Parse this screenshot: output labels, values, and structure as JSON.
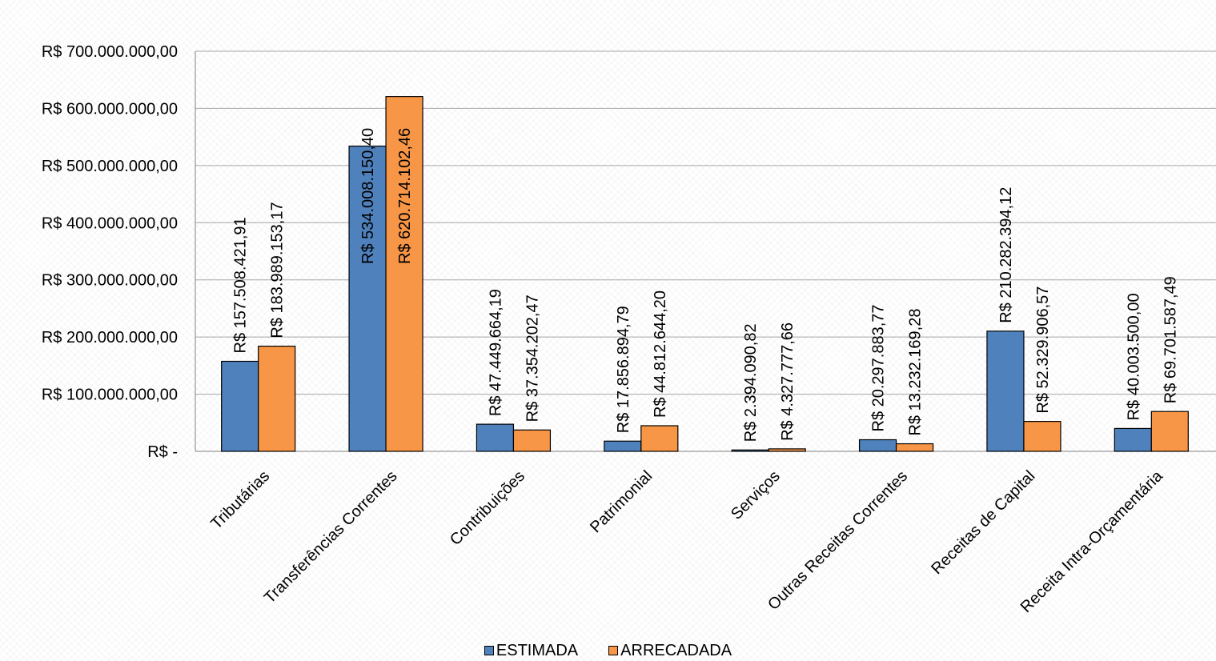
{
  "chart_data": {
    "type": "bar",
    "categories": [
      "Tributárias",
      "Transferências Correntes",
      "Contribuições",
      "Patrimonial",
      "Serviços",
      "Outras Receitas Correntes",
      "Receitas de Capital",
      "Receita Intra-Orçamentária"
    ],
    "series": [
      {
        "name": "ESTIMADA",
        "color": "#4F81BD",
        "values": [
          157508421.91,
          534008150.4,
          47449664.19,
          17856894.79,
          2394090.82,
          20297883.77,
          210282394.12,
          40003500.0
        ],
        "labels": [
          "R$ 157.508.421,91",
          "R$ 534.008.150,40",
          "R$ 47.449.664,19",
          "R$ 17.856.894,79",
          "R$ 2.394.090,82",
          "R$ 20.297.883,77",
          "R$ 210.282.394,12",
          "R$ 40.003.500,00"
        ]
      },
      {
        "name": "ARRECADADA",
        "color": "#F79646",
        "values": [
          183989153.17,
          620714102.46,
          37354202.47,
          44812644.2,
          4327777.66,
          13232169.28,
          52329906.57,
          69701587.49
        ],
        "labels": [
          "R$ 183.989.153,17",
          "R$ 620.714.102,46",
          "R$ 37.354.202,47",
          "R$ 44.812.644,20",
          "R$ 4.327.777,66",
          "R$ 13.232.169,28",
          "R$ 52.329.906,57",
          "R$ 69.701.587,49"
        ]
      }
    ],
    "yticks": [
      "R$ -",
      "R$ 100.000.000,00",
      "R$ 200.000.000,00",
      "R$ 300.000.000,00",
      "R$ 400.000.000,00",
      "R$ 500.000.000,00",
      "R$ 600.000.000,00",
      "R$ 700.000.000,00"
    ],
    "ylim": [
      0,
      700000000
    ],
    "grid": true,
    "legend_position": "bottom",
    "title": "",
    "xlabel": "",
    "ylabel": ""
  }
}
